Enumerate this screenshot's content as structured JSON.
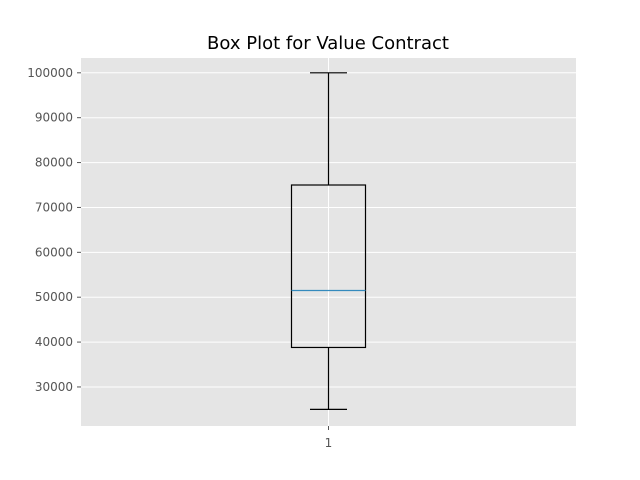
{
  "chart_data": {
    "type": "box",
    "title": "Box Plot for Value Contract",
    "xlabel": "",
    "ylabel": "",
    "categories": [
      "1"
    ],
    "series": [
      {
        "whisker_low": 25000,
        "q1": 38800,
        "median": 51500,
        "q3": 75000,
        "whisker_high": 100000
      }
    ],
    "yticks": [
      30000,
      40000,
      50000,
      60000,
      70000,
      80000,
      90000,
      100000
    ],
    "ylim": [
      21300,
      103300
    ],
    "grid": true,
    "colors": {
      "background": "#e5e5e5",
      "grid": "#ffffff",
      "box": "#000000",
      "median": "#348abd"
    }
  }
}
